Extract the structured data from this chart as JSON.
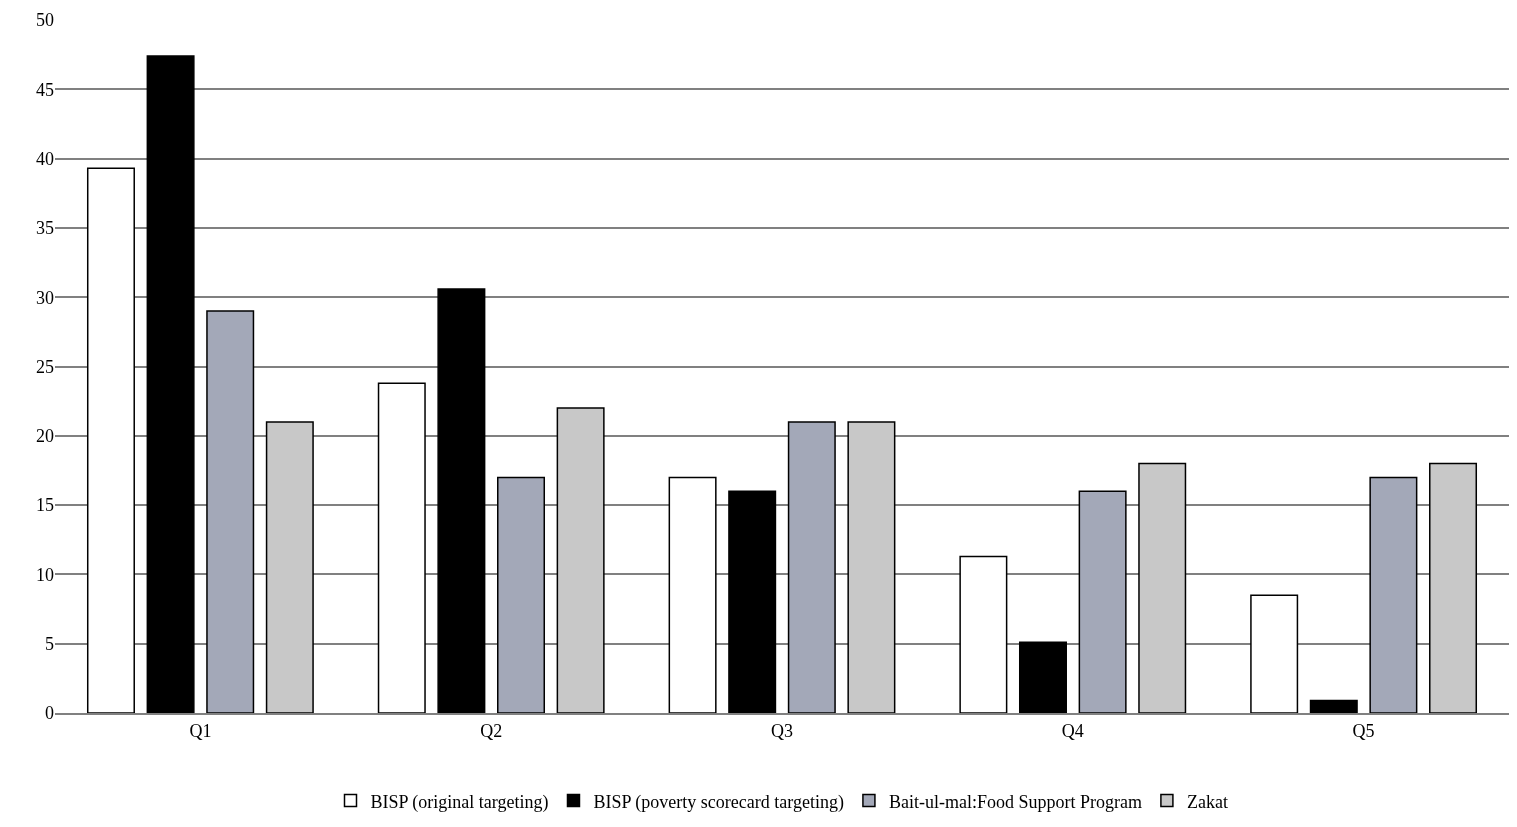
{
  "chart_data": {
    "type": "bar",
    "categories": [
      "Q1",
      "Q2",
      "Q3",
      "Q4",
      "Q5"
    ],
    "series": [
      {
        "name": "BISP (original targeting)",
        "color": "#ffffff",
        "values": [
          39.3,
          23.8,
          17,
          11.3,
          8.5
        ]
      },
      {
        "name": "BISP (poverty scorecard targeting)",
        "color": "#000000",
        "values": [
          47.4,
          30.6,
          16,
          5.1,
          0.9
        ]
      },
      {
        "name": "Bait-ul-mal:Food Support Program",
        "color": "#a3a8b8",
        "values": [
          29,
          17,
          21,
          16,
          17
        ]
      },
      {
        "name": "Zakat",
        "color": "#c8c8c8",
        "values": [
          21,
          22,
          21,
          18,
          18
        ]
      }
    ],
    "ylim": [
      0,
      50
    ],
    "yticks": [
      0,
      5,
      10,
      15,
      20,
      25,
      30,
      35,
      40,
      45,
      50
    ],
    "grid": "y",
    "legend": "bottom"
  }
}
